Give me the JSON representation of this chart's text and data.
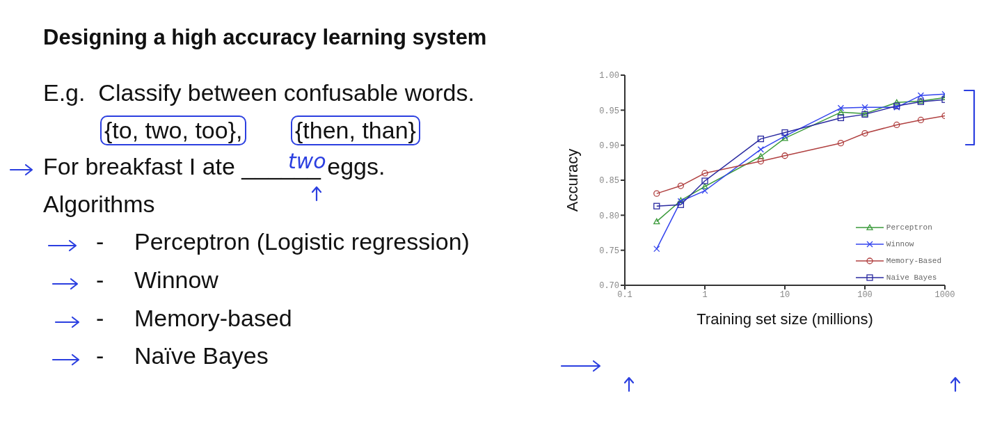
{
  "chart_data": {
    "type": "line",
    "title": "Designing a high accuracy learning system",
    "xlabel": "Training set size (millions)",
    "ylabel": "Accuracy",
    "log": "x",
    "x": [
      0.25,
      0.5,
      1,
      5,
      10,
      50,
      100,
      250,
      500,
      1000
    ],
    "xlim": [
      0.1,
      1000
    ],
    "xticks": [
      0.1,
      1,
      10,
      100,
      1000
    ],
    "ylim": [
      0.7,
      1.0
    ],
    "yticks": [
      {
        "value": 0.7,
        "label": "0.70"
      },
      {
        "value": 0.75,
        "label": "0.75"
      },
      {
        "value": 0.8,
        "label": "0.80"
      },
      {
        "value": 0.85,
        "label": "0.85"
      },
      {
        "value": 0.9,
        "label": "0.90"
      },
      {
        "value": 0.95,
        "label": "0.95"
      },
      {
        "value": 1.0,
        "label": "1.00"
      }
    ],
    "grid": false,
    "legend": "bottom right",
    "annotations": [
      "E.g.  Classify between confusable words.",
      "{to, two, too},",
      "{then, than}",
      "For breakfast I ate ______ eggs.",
      "two",
      "Algorithms",
      "- Perceptron (Logistic regression)",
      "- Winnow",
      "- Memory-based",
      "- Naïve Bayes"
    ],
    "series": [
      {
        "name": "Perceptron",
        "color": "#3a9a3a",
        "marker": "triangle",
        "values": [
          0.791,
          0.821,
          0.841,
          0.884,
          0.91,
          0.947,
          0.945,
          0.961,
          0.963,
          0.968
        ]
      },
      {
        "name": "Winnow",
        "color": "#3344ee",
        "marker": "cross",
        "values": [
          0.752,
          0.82,
          0.835,
          0.894,
          0.913,
          0.953,
          0.954,
          0.954,
          0.971,
          0.973
        ]
      },
      {
        "name": "Memory-Based",
        "color": "#b04040",
        "marker": "circle",
        "values": [
          0.831,
          0.842,
          0.86,
          0.877,
          0.885,
          0.903,
          0.917,
          0.929,
          0.936,
          0.942
        ]
      },
      {
        "name": "Naive Bayes",
        "color": "#2a2aa0",
        "marker": "square",
        "values": [
          0.813,
          0.815,
          0.849,
          0.909,
          0.918,
          0.939,
          0.944,
          0.956,
          0.962,
          0.965
        ]
      }
    ]
  }
}
